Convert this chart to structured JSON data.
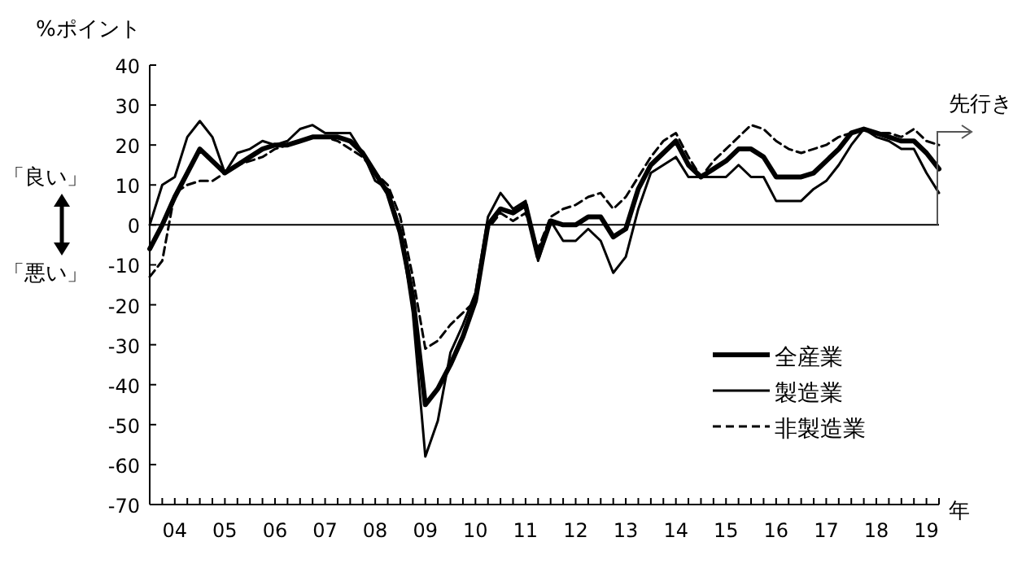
{
  "chart_data": {
    "type": "line",
    "ylabel": "%ポイント",
    "xlabel": "年",
    "annotations": [
      "「良い」",
      "「悪い」",
      "先行き"
    ],
    "categories": [
      null,
      null,
      "04",
      null,
      null,
      null,
      "05",
      null,
      null,
      null,
      "06",
      null,
      null,
      null,
      "07",
      null,
      null,
      null,
      "08",
      null,
      null,
      null,
      "09",
      null,
      null,
      null,
      "10",
      null,
      null,
      null,
      "11",
      null,
      null,
      null,
      "12",
      null,
      null,
      null,
      "13",
      null,
      null,
      null,
      "14",
      null,
      null,
      null,
      "15",
      null,
      null,
      null,
      "16",
      null,
      null,
      null,
      "17",
      null,
      null,
      null,
      "18",
      null,
      null,
      null,
      "19",
      null
    ],
    "series": [
      {
        "name": "全産業",
        "color": "#000000",
        "line_style": "solid",
        "values": [
          -6,
          0,
          7,
          13,
          19,
          16,
          13,
          15,
          17,
          19,
          20,
          20,
          21,
          22,
          22,
          22,
          21,
          18,
          13,
          8,
          -2,
          -18,
          -45,
          -41,
          -35,
          -28,
          -19,
          0,
          4,
          3,
          5,
          -8,
          1,
          0,
          0,
          2,
          2,
          -3,
          -1,
          9,
          15,
          18,
          21,
          15,
          12,
          14,
          16,
          19,
          19,
          17,
          12,
          12,
          12,
          13,
          16,
          19,
          23,
          24,
          23,
          22,
          21,
          21,
          18,
          14
        ]
      },
      {
        "name": "製造業",
        "color": "#000000",
        "line_style": "solid",
        "values": [
          0,
          10,
          12,
          22,
          26,
          22,
          13,
          18,
          19,
          21,
          20,
          21,
          24,
          25,
          23,
          23,
          23,
          18,
          11,
          9,
          -1,
          -22,
          -58,
          -49,
          -32,
          -25,
          -17,
          2,
          8,
          4,
          6,
          -9,
          1,
          -4,
          -4,
          -1,
          -4,
          -12,
          -8,
          4,
          13,
          15,
          17,
          12,
          12,
          12,
          12,
          15,
          12,
          12,
          6,
          6,
          6,
          9,
          11,
          15,
          20,
          24,
          22,
          21,
          19,
          19,
          13,
          8
        ]
      },
      {
        "name": "非製造業",
        "color": "#000000",
        "line_style": "dashed",
        "values": [
          -13,
          -9,
          8,
          10,
          11,
          11,
          13,
          15,
          16,
          17,
          19,
          20,
          21,
          22,
          22,
          21,
          19,
          17,
          13,
          10,
          2,
          -13,
          -31,
          -29,
          -25,
          -22,
          -19,
          -1,
          3,
          1,
          3,
          -6,
          2,
          4,
          5,
          7,
          8,
          4,
          7,
          12,
          17,
          21,
          23,
          17,
          12,
          16,
          19,
          22,
          25,
          24,
          21,
          19,
          18,
          19,
          20,
          22,
          23,
          24,
          23,
          23,
          22,
          24,
          21,
          20
        ]
      }
    ],
    "ylim": [
      -70,
      40
    ],
    "yticks": [
      -70,
      -60,
      -50,
      -40,
      -30,
      -20,
      -10,
      0,
      10,
      20,
      30,
      40
    ],
    "ref_lines": [
      {
        "axis": "y",
        "value": 0
      }
    ],
    "grid": false,
    "legend": "bottom right",
    "marker": "none"
  }
}
